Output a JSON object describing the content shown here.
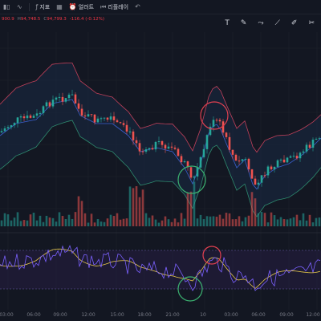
{
  "toolbar": {
    "indicators_label": "지표",
    "alerts_label": "얼러트",
    "replay_label": "리플레이"
  },
  "ohlc": {
    "o_value": "900.9",
    "h_label": "H",
    "h_value": "94,748.5",
    "c_label": "C",
    "c_value": "94,799.3",
    "change": "-116.4 (-0.12%)"
  },
  "icons": [
    "chart-type-icon",
    "indicators-icon",
    "alert-clock-icon",
    "replay-icon",
    "undo-icon",
    "text-tool-icon",
    "pencil-tool-icon",
    "path-tool-icon",
    "line-tool-icon",
    "brush-tool-icon",
    "scissors-icon"
  ],
  "colors": {
    "up": "#26a69a",
    "down": "#ef5350",
    "bb_upper": "#c0405a",
    "bb_lower": "#2e8b6f",
    "bb_basis": "#3a5fcd",
    "highlight_top": "#e04050",
    "highlight_bottom": "#3cb371",
    "oscillator_line": "#7b61ff",
    "oscillator_signal": "#e6c84a"
  },
  "time_axis": {
    "labels": [
      "03:00",
      "06:00",
      "09:00",
      "12:00",
      "15:00",
      "18:00",
      "21:00",
      "10",
      "03:00",
      "06:00",
      "09:00",
      "12:00"
    ]
  }
}
